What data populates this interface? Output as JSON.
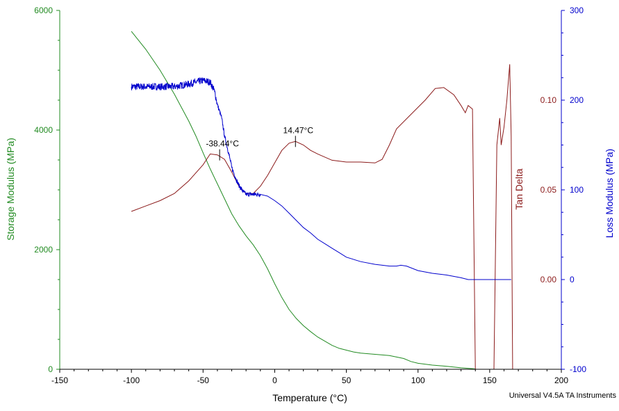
{
  "chart_data": {
    "type": "line",
    "xlabel": "Temperature (°C)",
    "x_range": [
      -150,
      200
    ],
    "x_ticks": [
      "-150",
      "-100",
      "-50",
      "0",
      "50",
      "100",
      "150",
      "200"
    ],
    "left_axis": {
      "label": "Storage Modulus (MPa)",
      "range": [
        0,
        6000
      ],
      "ticks": [
        "0",
        "2000",
        "4000",
        "6000"
      ],
      "color": "#228b22"
    },
    "tan_axis": {
      "label": "Tan Delta",
      "range": [
        -0.05,
        0.15
      ],
      "ticks": [
        "0.00",
        "0.05",
        "0.10"
      ],
      "tick_values": [
        0.0,
        0.05,
        0.1
      ],
      "color": "#8b1a1a"
    },
    "right_axis": {
      "label": "Loss Modulus (MPa)",
      "range": [
        -100,
        300
      ],
      "ticks": [
        "-100",
        "0",
        "100",
        "200",
        "300"
      ],
      "color": "#0000cd"
    },
    "series": [
      {
        "name": "Storage Modulus",
        "axis": "left",
        "color": "#228b22",
        "points": [
          [
            -100,
            5650
          ],
          [
            -90,
            5350
          ],
          [
            -80,
            5000
          ],
          [
            -70,
            4600
          ],
          [
            -60,
            4150
          ],
          [
            -55,
            3900
          ],
          [
            -50,
            3620
          ],
          [
            -45,
            3350
          ],
          [
            -40,
            3100
          ],
          [
            -35,
            2850
          ],
          [
            -30,
            2600
          ],
          [
            -25,
            2400
          ],
          [
            -20,
            2230
          ],
          [
            -15,
            2080
          ],
          [
            -10,
            1900
          ],
          [
            -5,
            1680
          ],
          [
            0,
            1430
          ],
          [
            5,
            1200
          ],
          [
            10,
            1000
          ],
          [
            15,
            850
          ],
          [
            20,
            730
          ],
          [
            25,
            630
          ],
          [
            30,
            540
          ],
          [
            35,
            470
          ],
          [
            40,
            400
          ],
          [
            45,
            350
          ],
          [
            50,
            320
          ],
          [
            55,
            290
          ],
          [
            60,
            270
          ],
          [
            70,
            250
          ],
          [
            80,
            230
          ],
          [
            90,
            180
          ],
          [
            95,
            130
          ],
          [
            100,
            100
          ],
          [
            110,
            70
          ],
          [
            120,
            50
          ],
          [
            130,
            25
          ],
          [
            138,
            10
          ],
          [
            140,
            5
          ]
        ]
      },
      {
        "name": "Tan Delta",
        "axis": "tan",
        "color": "#8b1a1a",
        "points": [
          [
            -100,
            0.038
          ],
          [
            -90,
            0.041
          ],
          [
            -80,
            0.044
          ],
          [
            -70,
            0.048
          ],
          [
            -60,
            0.055
          ],
          [
            -50,
            0.064
          ],
          [
            -45,
            0.07
          ],
          [
            -40,
            0.0695
          ],
          [
            -35,
            0.067
          ],
          [
            -30,
            0.06
          ],
          [
            -25,
            0.052
          ],
          [
            -20,
            0.048
          ],
          [
            -15,
            0.048
          ],
          [
            -10,
            0.052
          ],
          [
            -5,
            0.058
          ],
          [
            0,
            0.065
          ],
          [
            5,
            0.072
          ],
          [
            10,
            0.076
          ],
          [
            14.47,
            0.077
          ],
          [
            20,
            0.075
          ],
          [
            25,
            0.072
          ],
          [
            30,
            0.07
          ],
          [
            40,
            0.0665
          ],
          [
            50,
            0.0655
          ],
          [
            60,
            0.0655
          ],
          [
            70,
            0.065
          ],
          [
            75,
            0.067
          ],
          [
            80,
            0.075
          ],
          [
            85,
            0.084
          ],
          [
            95,
            0.092
          ],
          [
            105,
            0.1
          ],
          [
            112,
            0.1065
          ],
          [
            118,
            0.107
          ],
          [
            125,
            0.103
          ],
          [
            130,
            0.097
          ],
          [
            133,
            0.093
          ],
          [
            135,
            0.097
          ],
          [
            138,
            0.095
          ],
          [
            140,
            -0.05
          ],
          [
            153,
            -0.05
          ],
          [
            155,
            0.075
          ],
          [
            157,
            0.09
          ],
          [
            158,
            0.075
          ],
          [
            160,
            0.085
          ],
          [
            162,
            0.1
          ],
          [
            164,
            0.12
          ],
          [
            165,
            0.08
          ],
          [
            166,
            -0.05
          ]
        ]
      },
      {
        "name": "Loss Modulus",
        "axis": "right",
        "color": "#0000cd",
        "noisy_until": -10,
        "points": [
          [
            -100,
            215
          ],
          [
            -90,
            215
          ],
          [
            -80,
            215
          ],
          [
            -70,
            215
          ],
          [
            -60,
            218
          ],
          [
            -55,
            220
          ],
          [
            -50,
            222
          ],
          [
            -45,
            220
          ],
          [
            -42,
            210
          ],
          [
            -40,
            195
          ],
          [
            -37,
            180
          ],
          [
            -35,
            160
          ],
          [
            -32,
            140
          ],
          [
            -30,
            125
          ],
          [
            -27,
            112
          ],
          [
            -25,
            105
          ],
          [
            -22,
            98
          ],
          [
            -20,
            95
          ],
          [
            -15,
            95
          ],
          [
            -10,
            95
          ],
          [
            -5,
            93
          ],
          [
            0,
            88
          ],
          [
            5,
            82
          ],
          [
            10,
            74
          ],
          [
            15,
            66
          ],
          [
            20,
            58
          ],
          [
            25,
            52
          ],
          [
            30,
            45
          ],
          [
            35,
            40
          ],
          [
            40,
            35
          ],
          [
            45,
            30
          ],
          [
            50,
            25
          ],
          [
            60,
            20
          ],
          [
            70,
            17
          ],
          [
            80,
            15
          ],
          [
            85,
            15
          ],
          [
            88,
            16
          ],
          [
            92,
            15
          ],
          [
            100,
            10
          ],
          [
            110,
            7
          ],
          [
            120,
            5
          ],
          [
            130,
            2
          ],
          [
            135,
            0
          ],
          [
            140,
            0
          ],
          [
            150,
            0
          ],
          [
            160,
            0
          ],
          [
            165,
            0
          ]
        ]
      }
    ],
    "annotations": [
      {
        "text": "-38.44°C",
        "x": -38.44,
        "series": "Tan Delta",
        "y": 0.0695
      },
      {
        "text": "14.47°C",
        "x": 14.47,
        "series": "Tan Delta",
        "y": 0.077
      }
    ]
  },
  "footer": {
    "credit": "Universal V4.5A TA Instruments"
  }
}
